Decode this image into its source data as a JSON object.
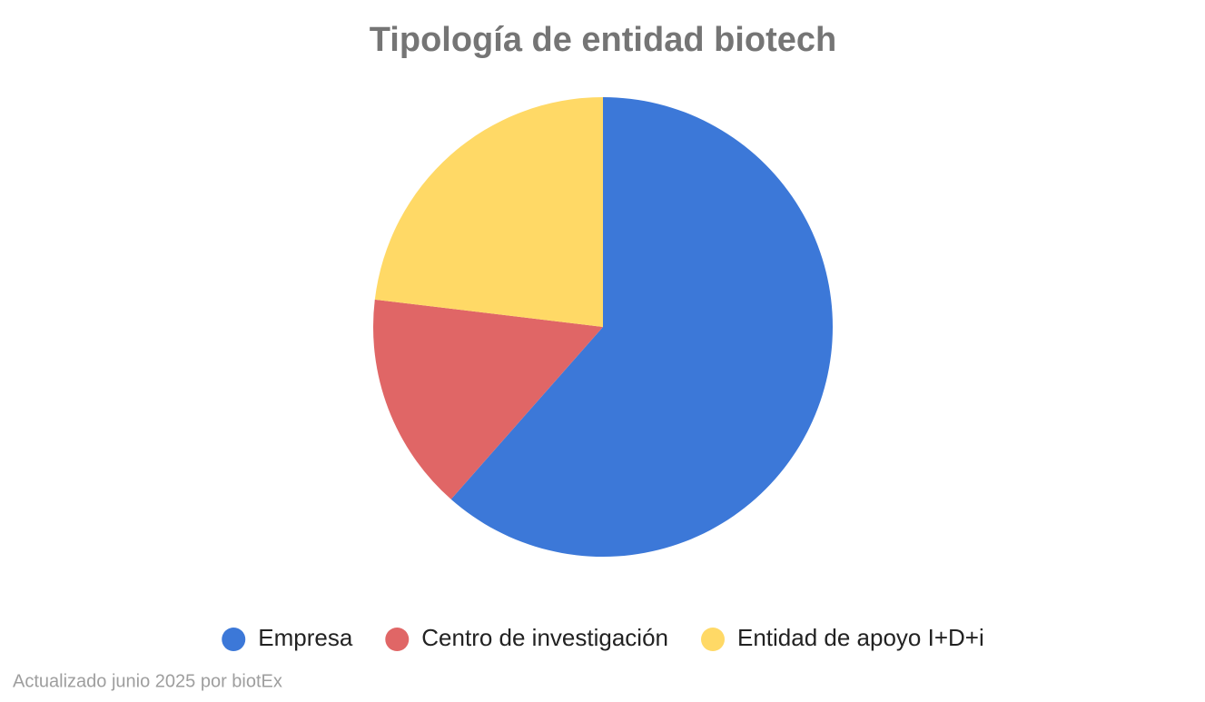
{
  "chart_data": {
    "type": "pie",
    "title": "Tipología de entidad biotech",
    "categories": [
      "Empresa",
      "Centro de investigación",
      "Entidad de apoyo I+D+i"
    ],
    "values": [
      61.5,
      15.4,
      23.1
    ],
    "colors": [
      "#3c78d8",
      "#e06666",
      "#ffd966"
    ],
    "footnote": "Actualizado junio 2025 por biotEx",
    "legend": "bottom"
  }
}
